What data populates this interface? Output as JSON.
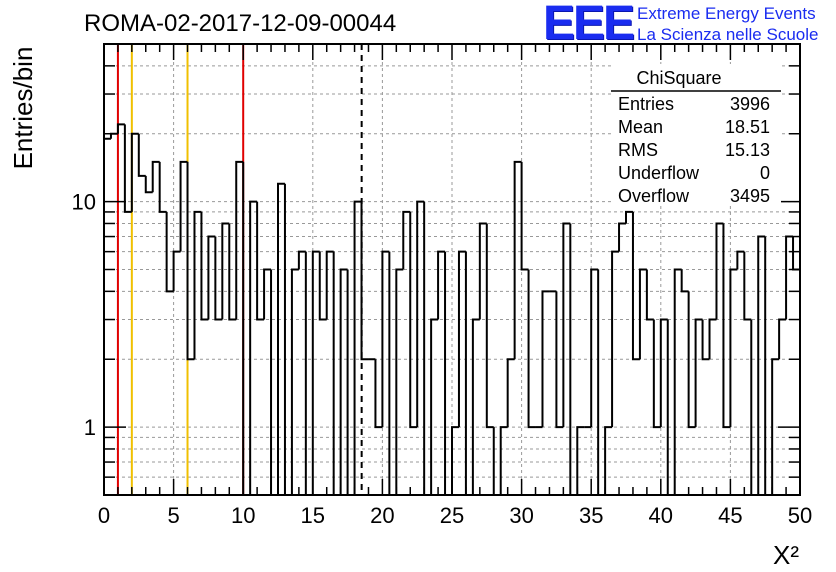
{
  "page_title": "ROMA-02-2017-12-09-00044",
  "logo": {
    "mark": "EEE",
    "line1": "Extreme Energy Events",
    "line2": "La Scienza nelle Scuole",
    "color": "#1a2cf0"
  },
  "stats_box": {
    "title": "ChiSquare",
    "rows": [
      {
        "label": "Entries",
        "value": "3996"
      },
      {
        "label": "Mean",
        "value": "18.51"
      },
      {
        "label": "RMS",
        "value": "15.13"
      },
      {
        "label": "Underflow",
        "value": "0"
      },
      {
        "label": "Overflow",
        "value": "3495"
      }
    ]
  },
  "chart_data": {
    "type": "histogram",
    "x_scale": "linear",
    "y_scale": "log",
    "xlabel": "X²",
    "ylabel": "Entries/bin",
    "xlim": [
      0,
      50
    ],
    "ylim": [
      0.5,
      50
    ],
    "bin_width": 0.5,
    "x_ticks": [
      0,
      5,
      10,
      15,
      20,
      25,
      30,
      35,
      40,
      45,
      50
    ],
    "y_tick_labels": [
      {
        "value": 1,
        "label": "1"
      },
      {
        "value": 10,
        "label": "10"
      }
    ],
    "grid": true,
    "values": [
      19,
      20,
      22,
      9,
      20,
      13,
      11,
      15,
      9,
      4,
      6,
      15,
      2,
      9,
      3,
      7,
      3,
      8,
      3,
      15,
      0,
      10,
      3,
      5,
      0,
      12,
      0,
      5,
      6,
      0,
      6,
      3,
      6,
      0,
      5,
      0,
      10,
      2,
      2,
      1,
      6,
      0,
      5,
      9,
      1,
      10,
      0,
      3,
      6,
      0,
      1,
      6,
      0,
      3,
      8,
      1,
      0,
      1,
      2,
      15,
      5,
      1,
      1,
      4,
      4,
      1,
      8,
      0,
      1,
      1,
      5,
      0,
      1,
      6,
      8,
      9,
      2,
      5,
      3,
      1,
      3,
      0,
      5,
      4,
      1,
      3,
      2,
      3,
      8,
      1,
      5,
      6,
      3,
      0,
      7,
      0,
      2,
      3,
      7,
      5
    ],
    "reference_lines": [
      {
        "x": 1,
        "color": "#e00000",
        "style": "solid"
      },
      {
        "x": 2,
        "color": "#f0c000",
        "style": "solid"
      },
      {
        "x": 6,
        "color": "#f0c000",
        "style": "solid"
      },
      {
        "x": 10,
        "color": "#e00000",
        "style": "solid"
      },
      {
        "x": 18.51,
        "color": "#000000",
        "style": "dashed"
      }
    ],
    "line_color": "#000000"
  }
}
